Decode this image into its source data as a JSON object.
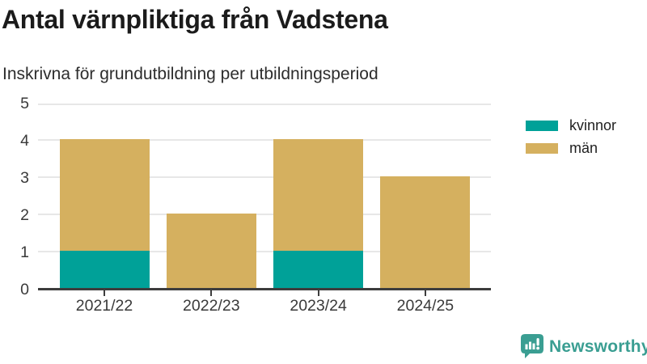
{
  "header": {
    "title": "Antal värnpliktiga från Vadstena",
    "subtitle": "Inskrivna för grundutbildning per utbildningsperiod"
  },
  "chart_data": {
    "type": "bar",
    "stacked": true,
    "title": "Antal värnpliktiga från Vadstena",
    "subtitle": "Inskrivna för grundutbildning per utbildningsperiod",
    "categories": [
      "2021/22",
      "2022/23",
      "2023/24",
      "2024/25"
    ],
    "series": [
      {
        "name": "kvinnor",
        "color": "#00a198",
        "values": [
          1,
          0,
          1,
          0
        ]
      },
      {
        "name": "män",
        "color": "#d5b05f",
        "values": [
          3,
          2,
          3,
          3
        ]
      }
    ],
    "xlabel": "",
    "ylabel": "",
    "ylim": [
      0,
      5
    ],
    "yticks": [
      0,
      1,
      2,
      3,
      4,
      5
    ],
    "grid": true,
    "legend_position": "top-right",
    "colors": {
      "grid": "#e7e7e7",
      "axis": "#3d3d3d",
      "text": "#3a3a3a"
    }
  },
  "branding": {
    "logo_text": "Newsworthy",
    "logo_icon": "newsworthy-bubble-chart-icon",
    "logo_color": "#3a9e92"
  }
}
